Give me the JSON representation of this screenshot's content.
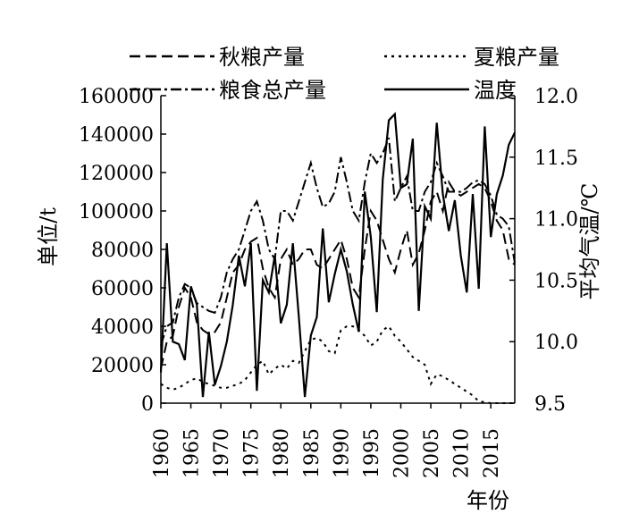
{
  "chart_data": {
    "type": "line",
    "xlabel": "年份",
    "ylabel_left": "单位/t",
    "ylabel_right": "平均气温/℃",
    "xlim": [
      1960,
      2019
    ],
    "ylim_left": [
      0,
      160000
    ],
    "ylim_right": [
      9.5,
      12.0
    ],
    "x_ticks": [
      "1960",
      "1965",
      "1970",
      "1975",
      "1980",
      "1985",
      "1990",
      "1995",
      "2000",
      "2005",
      "2010",
      "2015"
    ],
    "y_ticks_left": [
      "0",
      "20000",
      "40000",
      "60000",
      "80000",
      "100000",
      "120000",
      "140000",
      "160000"
    ],
    "y_ticks_right": [
      "9.5",
      "10.0",
      "10.5",
      "11.0",
      "11.5",
      "12.0"
    ],
    "legend_position": "top",
    "years": [
      1960,
      1961,
      1962,
      1963,
      1964,
      1965,
      1966,
      1967,
      1968,
      1969,
      1970,
      1971,
      1972,
      1973,
      1974,
      1975,
      1976,
      1977,
      1978,
      1979,
      1980,
      1981,
      1982,
      1983,
      1984,
      1985,
      1986,
      1987,
      1988,
      1989,
      1990,
      1991,
      1992,
      1993,
      1994,
      1995,
      1996,
      1997,
      1998,
      1999,
      2000,
      2001,
      2002,
      2003,
      2004,
      2005,
      2006,
      2007,
      2008,
      2009,
      2010,
      2011,
      2012,
      2013,
      2014,
      2015,
      2016,
      2017,
      2018,
      2019
    ],
    "series": [
      {
        "name": "秋粮产量",
        "axis": "left",
        "style": "dashed",
        "values": [
          18000,
          32000,
          35000,
          50000,
          60000,
          55000,
          42000,
          38000,
          36000,
          37000,
          42000,
          55000,
          68000,
          72000,
          80000,
          84000,
          86000,
          70000,
          60000,
          55000,
          75000,
          80000,
          72000,
          75000,
          80000,
          80000,
          72000,
          70000,
          75000,
          80000,
          85000,
          75000,
          60000,
          55000,
          80000,
          100000,
          95000,
          85000,
          75000,
          68000,
          80000,
          90000,
          72000,
          78000,
          90000,
          105000,
          110000,
          100000,
          115000,
          110000,
          108000,
          110000,
          112000,
          114000,
          112000,
          105000,
          95000,
          90000,
          75000,
          72000
        ]
      },
      {
        "name": "夏粮产量",
        "axis": "left",
        "style": "dotted",
        "values": [
          10000,
          8000,
          7000,
          8000,
          10000,
          12000,
          13000,
          11000,
          10000,
          9000,
          8000,
          8000,
          9000,
          10000,
          12000,
          16000,
          20000,
          22000,
          15000,
          18000,
          20000,
          18000,
          22000,
          21000,
          27000,
          33000,
          34000,
          32000,
          27000,
          26000,
          38000,
          40000,
          40000,
          38000,
          35000,
          30000,
          32000,
          38000,
          40000,
          35000,
          32000,
          28000,
          24000,
          22000,
          20000,
          10000,
          15000,
          14000,
          12000,
          10000,
          8000,
          6000,
          4000,
          1000,
          500,
          0,
          0,
          0,
          0,
          0
        ]
      },
      {
        "name": "粮食总产量",
        "axis": "left",
        "style": "dashdot",
        "values": [
          30000,
          40000,
          42000,
          55000,
          62000,
          60000,
          52000,
          50000,
          48000,
          47000,
          55000,
          68000,
          75000,
          80000,
          90000,
          100000,
          105000,
          95000,
          80000,
          75000,
          100000,
          100000,
          95000,
          105000,
          115000,
          125000,
          112000,
          102000,
          104000,
          110000,
          128000,
          115000,
          100000,
          95000,
          115000,
          130000,
          125000,
          130000,
          138000,
          105000,
          112000,
          118000,
          100000,
          100000,
          110000,
          115000,
          125000,
          118000,
          110000,
          110000,
          110000,
          112000,
          115000,
          116000,
          114000,
          108000,
          98000,
          96000,
          92000,
          73000
        ]
      },
      {
        "name": "温度",
        "axis": "right",
        "style": "solid",
        "values": [
          9.75,
          10.8,
          10.0,
          9.98,
          9.85,
          10.45,
          10.3,
          9.55,
          10.08,
          9.65,
          9.8,
          10.0,
          10.3,
          10.7,
          10.45,
          10.8,
          9.6,
          10.5,
          10.4,
          10.7,
          10.15,
          10.3,
          10.8,
          10.2,
          9.55,
          10.05,
          10.2,
          10.92,
          10.32,
          10.55,
          10.75,
          10.57,
          10.3,
          10.08,
          11.22,
          10.85,
          10.24,
          11.32,
          11.8,
          11.85,
          11.25,
          11.28,
          11.65,
          10.25,
          11.1,
          11.0,
          11.78,
          11.2,
          10.9,
          11.15,
          10.7,
          10.4,
          11.2,
          10.43,
          11.75,
          10.85,
          11.2,
          11.35,
          11.6,
          11.7
        ]
      }
    ]
  }
}
